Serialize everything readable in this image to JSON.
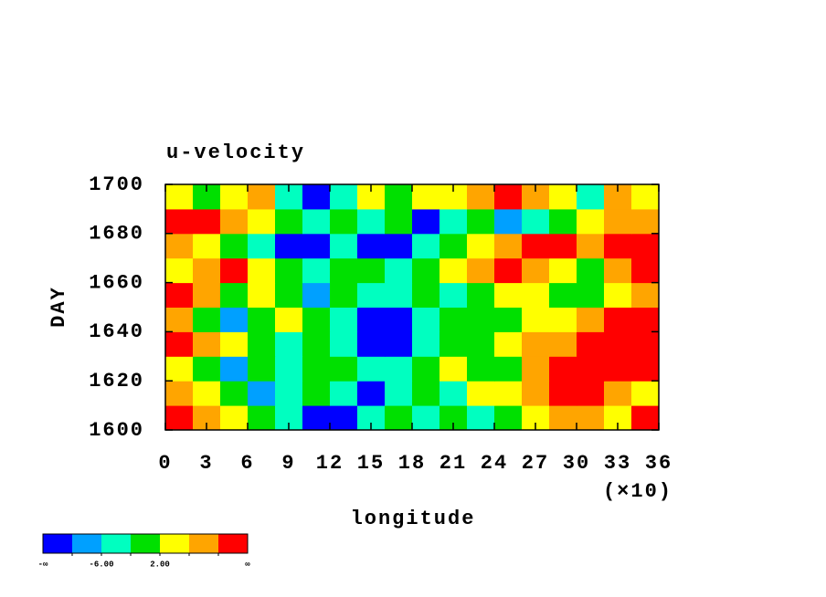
{
  "chart_data": {
    "type": "heatmap",
    "title": "u-velocity",
    "xlabel": "longitude",
    "ylabel": "DAY",
    "x_multiplier": "(×10)",
    "x": [
      0,
      20,
      40,
      60,
      80,
      100,
      120,
      140,
      160,
      180,
      200,
      220,
      240,
      260,
      280,
      300,
      320,
      340,
      360
    ],
    "y": [
      1600,
      1610,
      1620,
      1630,
      1640,
      1650,
      1660,
      1670,
      1680,
      1690,
      1700
    ],
    "z": [
      [
        12,
        8,
        4,
        0,
        -4,
        -12,
        -12,
        -4,
        0,
        -4,
        0,
        -4,
        0,
        4,
        8,
        8,
        4,
        12
      ],
      [
        8,
        4,
        0,
        -8,
        -4,
        0,
        -4,
        -12,
        -4,
        0,
        -4,
        4,
        4,
        8,
        12,
        12,
        8,
        4
      ],
      [
        4,
        0,
        -8,
        0,
        -4,
        0,
        0,
        -4,
        -4,
        0,
        4,
        0,
        0,
        8,
        12,
        12,
        12,
        12
      ],
      [
        12,
        8,
        4,
        0,
        -4,
        0,
        -4,
        -12,
        -12,
        -4,
        0,
        0,
        4,
        8,
        8,
        12,
        12,
        12
      ],
      [
        8,
        0,
        -8,
        0,
        4,
        0,
        -4,
        -12,
        -12,
        -4,
        0,
        0,
        0,
        4,
        4,
        8,
        12,
        12
      ],
      [
        12,
        8,
        0,
        4,
        0,
        -8,
        0,
        -4,
        -4,
        0,
        -4,
        0,
        4,
        4,
        0,
        0,
        4,
        8
      ],
      [
        4,
        8,
        12,
        4,
        0,
        -4,
        0,
        0,
        -4,
        0,
        4,
        8,
        12,
        8,
        4,
        0,
        8,
        12
      ],
      [
        8,
        4,
        0,
        -4,
        -12,
        -12,
        -4,
        -12,
        -12,
        -4,
        0,
        4,
        8,
        12,
        12,
        8,
        12,
        12
      ],
      [
        12,
        12,
        8,
        4,
        0,
        -4,
        0,
        -4,
        0,
        -12,
        -4,
        0,
        -8,
        -4,
        0,
        4,
        8,
        8
      ],
      [
        4,
        0,
        4,
        8,
        -4,
        -12,
        -4,
        4,
        0,
        4,
        4,
        8,
        12,
        8,
        4,
        -4,
        8,
        4
      ]
    ],
    "levels": [
      -10,
      -6,
      -2,
      2,
      6,
      10
    ],
    "colors": [
      "#0000ff",
      "#00a0ff",
      "#00ffc0",
      "#00e000",
      "#ffff00",
      "#ffa500",
      "#ff0000"
    ],
    "colorbar_ticks": [
      {
        "value": -6,
        "label": "-6.00"
      },
      {
        "value": 2,
        "label": "2.00"
      }
    ],
    "colorbar_ends": [
      "-∞",
      "∞"
    ],
    "xlim": [
      0,
      360
    ],
    "xticks": [
      {
        "value": 0,
        "label": "0"
      },
      {
        "value": 30,
        "label": "3"
      },
      {
        "value": 60,
        "label": "6"
      },
      {
        "value": 90,
        "label": "9"
      },
      {
        "value": 120,
        "label": "12"
      },
      {
        "value": 150,
        "label": "15"
      },
      {
        "value": 180,
        "label": "18"
      },
      {
        "value": 210,
        "label": "21"
      },
      {
        "value": 240,
        "label": "24"
      },
      {
        "value": 270,
        "label": "27"
      },
      {
        "value": 300,
        "label": "30"
      },
      {
        "value": 330,
        "label": "33"
      },
      {
        "value": 360,
        "label": "36"
      }
    ],
    "ylim": [
      1600,
      1700
    ],
    "yticks": [
      1600,
      1620,
      1640,
      1660,
      1680,
      1700
    ]
  }
}
